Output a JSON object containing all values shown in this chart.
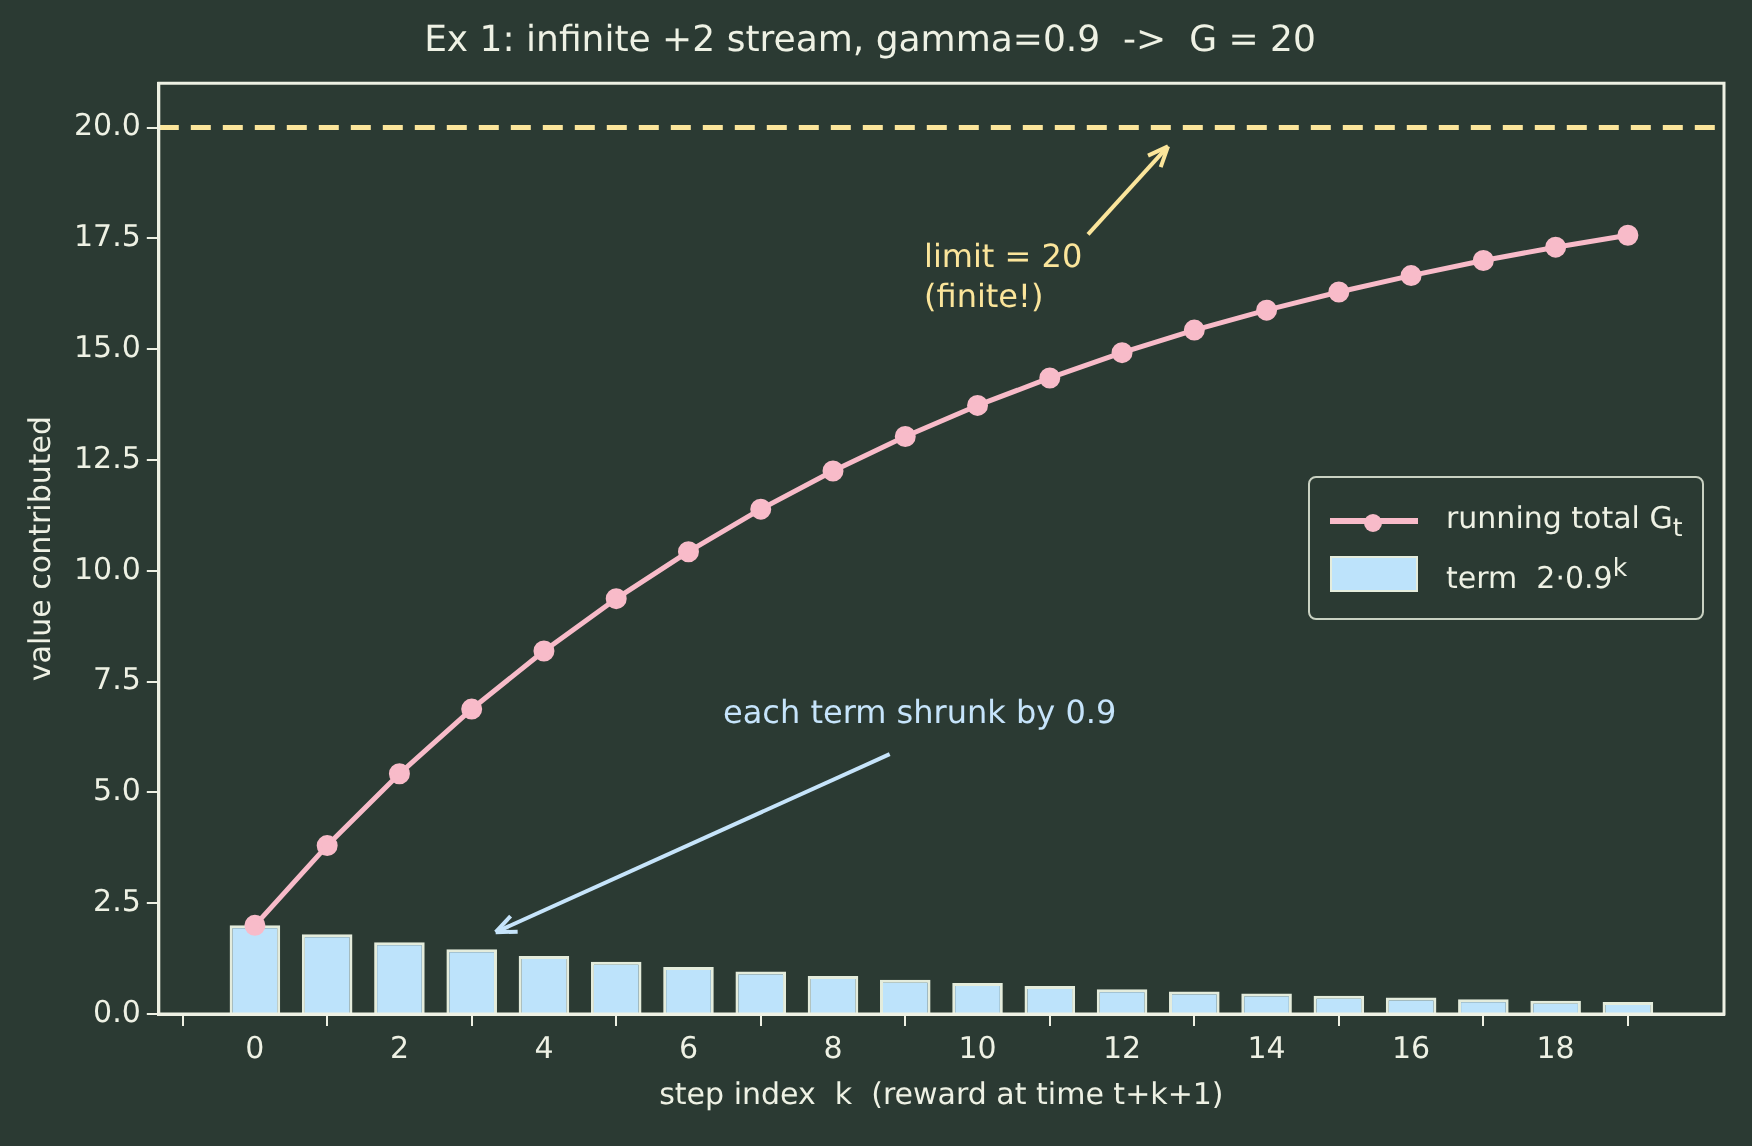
{
  "chart_data": {
    "type": "bar",
    "title": "Ex 1: infinite +2 stream, gamma=0.9  ->  G = 20",
    "xlabel": "step index  k  (reward at time t+k+1)",
    "ylabel": "value contributed",
    "x": [
      0,
      1,
      2,
      3,
      4,
      5,
      6,
      7,
      8,
      9,
      10,
      11,
      12,
      13,
      14,
      15,
      16,
      17,
      18,
      19
    ],
    "series": [
      {
        "name": "running total G$_{t}$",
        "type": "line",
        "color": "#f8bbc9",
        "values": [
          2,
          3.8,
          5.42,
          6.88,
          8.19,
          9.37,
          10.43,
          11.39,
          12.25,
          13.03,
          13.73,
          14.35,
          14.92,
          15.43,
          15.88,
          16.29,
          16.66,
          17,
          17.3,
          17.57
        ]
      },
      {
        "name": "term  2·0.9$^{k}$",
        "color": "#bde3fb",
        "values": [
          2,
          1.8,
          1.62,
          1.46,
          1.31,
          1.18,
          1.06,
          0.96,
          0.86,
          0.77,
          0.7,
          0.63,
          0.56,
          0.51,
          0.46,
          0.41,
          0.37,
          0.33,
          0.3,
          0.27
        ]
      }
    ],
    "xlim": [
      -1.33,
      20.33
    ],
    "xticks": [
      0,
      2,
      4,
      6,
      8,
      10,
      12,
      14,
      16,
      18
    ],
    "ylim": [
      0,
      21
    ],
    "yticks": [
      {
        "value": 0,
        "label": "0.0"
      },
      {
        "value": 2.5,
        "label": "2.5"
      },
      {
        "value": 5,
        "label": "5.0"
      },
      {
        "value": 7.5,
        "label": "7.5"
      },
      {
        "value": 10,
        "label": "10.0"
      },
      {
        "value": 12.5,
        "label": "12.5"
      },
      {
        "value": 15,
        "label": "15.0"
      },
      {
        "value": 17.5,
        "label": "17.5"
      },
      {
        "value": 20,
        "label": "20.0"
      }
    ],
    "ref_lines": [
      {
        "axis": "y",
        "value": 20,
        "color": "#fbe59b",
        "line_style": "dashed"
      }
    ],
    "annotations": [
      "limit = 20\n(finite!)",
      "each term shrunk by 0.9"
    ],
    "grid": false,
    "legend": "right",
    "marker": "circle",
    "line_style": "solid"
  }
}
